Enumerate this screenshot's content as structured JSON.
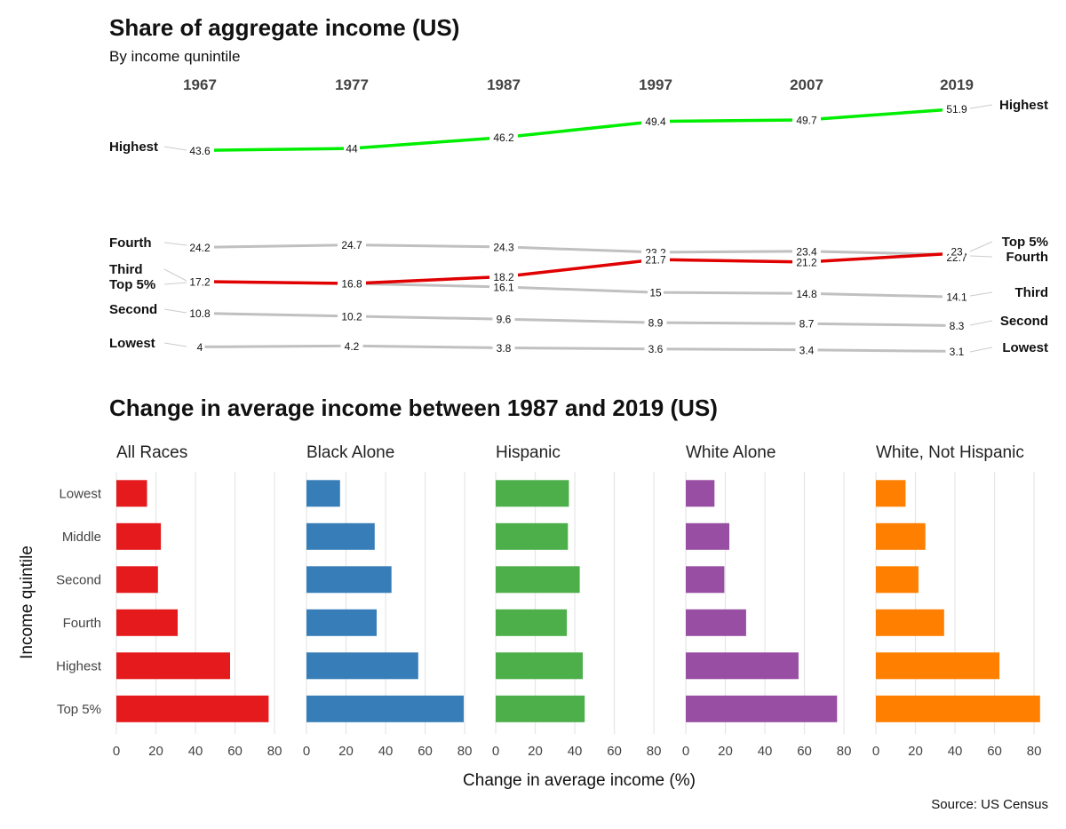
{
  "colors": {
    "highlight_highest": "#00ee00",
    "highlight_top5": "#e00000",
    "other_lines": "#c0c0c0",
    "leader": "#cccccc",
    "grid": "#e6e6e6",
    "facets": {
      "All Races": "#e41a1c",
      "Black Alone": "#377eb8",
      "Hispanic": "#4daf4a",
      "White Alone": "#984ea3",
      "White, Not Hispanic": "#ff7f00"
    }
  },
  "chart_data": [
    {
      "type": "line",
      "title": "Share of aggregate income (US)",
      "subtitle": "By income qunintile",
      "x": [
        "1967",
        "1977",
        "1987",
        "1997",
        "2007",
        "2019"
      ],
      "ylim": [
        3,
        52
      ],
      "grid": false,
      "series": [
        {
          "name": "Highest",
          "values": [
            43.6,
            44,
            46.2,
            49.4,
            49.7,
            51.9
          ],
          "color": "#00ee00",
          "highlight": true
        },
        {
          "name": "Fourth",
          "values": [
            24.2,
            24.7,
            24.3,
            23.2,
            23.4,
            22.7
          ],
          "color": "#c0c0c0",
          "highlight": false
        },
        {
          "name": "Top 5%",
          "values": [
            17.2,
            16.8,
            18.2,
            21.7,
            21.2,
            23
          ],
          "color": "#e00000",
          "highlight": true
        },
        {
          "name": "Third",
          "values": [
            17.2,
            16.8,
            16.1,
            15,
            14.8,
            14.1
          ],
          "color": "#c0c0c0",
          "highlight": false
        },
        {
          "name": "Second",
          "values": [
            10.8,
            10.2,
            9.6,
            8.9,
            8.7,
            8.3
          ],
          "color": "#c0c0c0",
          "highlight": false
        },
        {
          "name": "Lowest",
          "values": [
            4,
            4.2,
            3.8,
            3.6,
            3.4,
            3.1
          ],
          "color": "#c0c0c0",
          "highlight": false
        }
      ],
      "value_labels": [
        [
          "43.6",
          "44",
          "46.2",
          "49.4",
          "49.7",
          "51.9"
        ],
        [
          "24.2",
          "24.7",
          "24.3",
          "23.2",
          "23.4",
          "22.7"
        ],
        [
          "17.2",
          "16.8",
          "18.2",
          "21.7",
          "21.2",
          "23"
        ],
        [
          "",
          "",
          "16.1",
          "15",
          "14.8",
          "14.1"
        ],
        [
          "10.8",
          "10.2",
          "9.6",
          "8.9",
          "8.7",
          "8.3"
        ],
        [
          "4",
          "4.2",
          "3.8",
          "3.6",
          "3.4",
          "3.1"
        ]
      ],
      "left_labels": [
        "Highest",
        "Fourth",
        "Third",
        "Top 5%",
        "Second",
        "Lowest"
      ],
      "right_labels": [
        "Highest",
        "Top 5%",
        "Fourth",
        "Third",
        "Second",
        "Lowest"
      ]
    },
    {
      "type": "bar",
      "orientation": "horizontal",
      "title": "Change in average income between 1987 and 2019 (US)",
      "xlabel": "Change in average income (%)",
      "ylabel": "Income quintile",
      "categories": [
        "Lowest",
        "Middle",
        "Second",
        "Fourth",
        "Highest",
        "Top 5%"
      ],
      "xlim": [
        0,
        84
      ],
      "xticks": [
        "0",
        "20",
        "40",
        "60",
        "80"
      ],
      "grid": true,
      "facets": [
        {
          "name": "All Races",
          "values": [
            15.5,
            22.5,
            21,
            31,
            57.5,
            77
          ]
        },
        {
          "name": "Black Alone",
          "values": [
            17,
            34.5,
            43,
            35.5,
            56.5,
            79.5
          ]
        },
        {
          "name": "Hispanic",
          "values": [
            37,
            36.5,
            42.5,
            36,
            44,
            45
          ]
        },
        {
          "name": "White Alone",
          "values": [
            14.5,
            22,
            19.5,
            30.5,
            57,
            76.5
          ]
        },
        {
          "name": "White, Not Hispanic",
          "values": [
            15,
            25,
            21.5,
            34.5,
            62.5,
            83
          ]
        }
      ],
      "source": "Source: US Census"
    }
  ]
}
